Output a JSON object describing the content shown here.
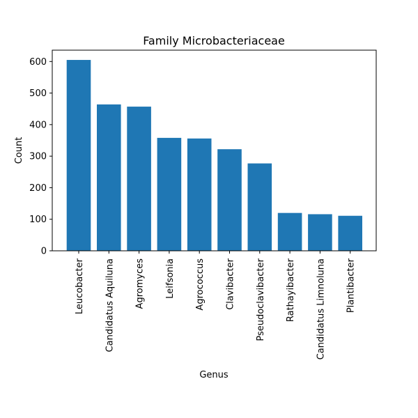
{
  "chart_data": {
    "type": "bar",
    "title": "Family Microbacteriaceae",
    "xlabel": "Genus",
    "ylabel": "Count",
    "categories": [
      "Leucobacter",
      "Candidatus Aquiluna",
      "Agromyces",
      "Leifsonia",
      "Agrococcus",
      "Clavibacter",
      "Pseudoclavibacter",
      "Rathayibacter",
      "Candidatus Limnoluna",
      "Plantibacter"
    ],
    "values": [
      605,
      464,
      457,
      358,
      356,
      322,
      277,
      120,
      116,
      111
    ],
    "ylim": [
      0,
      636
    ],
    "yticks": [
      0,
      100,
      200,
      300,
      400,
      500,
      600
    ],
    "ytick_labels": [
      "0",
      "100",
      "200",
      "300",
      "400",
      "500",
      "600"
    ],
    "bar_color": "#1f77b4",
    "grid": false
  }
}
